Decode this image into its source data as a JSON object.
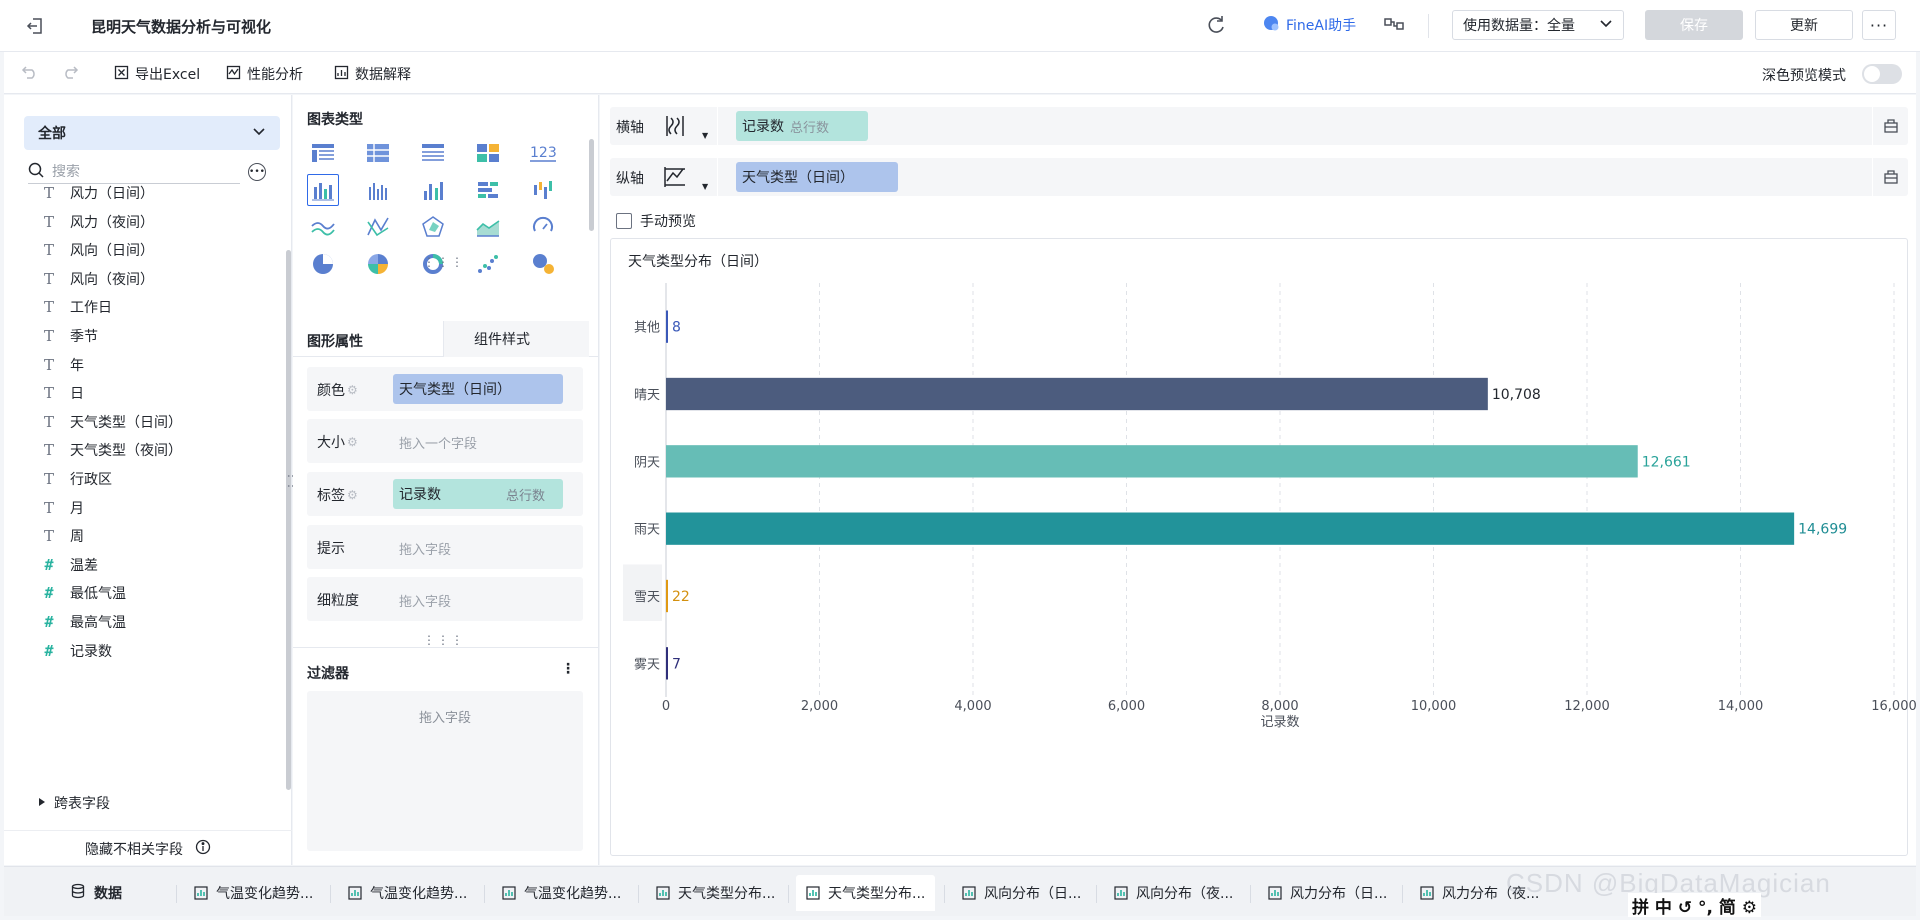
{
  "header": {
    "title": "昆明天气数据分析与可视化",
    "ai_label": "FineAI助手",
    "dataset_select": "使用数据量：全量",
    "save_label": "保存",
    "update_label": "更新",
    "more_label": "···"
  },
  "toolbar": {
    "export_label": "导出Excel",
    "perf_label": "性能分析",
    "explain_label": "数据解释",
    "dark_mode_label": "深色预览模式",
    "dark_mode_on": false
  },
  "field_panel": {
    "select_value": "全部",
    "search_placeholder": "搜索",
    "fields": [
      {
        "label": "风力（日间）",
        "type": "text"
      },
      {
        "label": "风力（夜间）",
        "type": "text"
      },
      {
        "label": "风向（日间）",
        "type": "text"
      },
      {
        "label": "风向（夜间）",
        "type": "text"
      },
      {
        "label": "工作日",
        "type": "text"
      },
      {
        "label": "季节",
        "type": "text"
      },
      {
        "label": "年",
        "type": "text"
      },
      {
        "label": "日",
        "type": "text"
      },
      {
        "label": "天气类型（日间）",
        "type": "text"
      },
      {
        "label": "天气类型（夜间）",
        "type": "text"
      },
      {
        "label": "行政区",
        "type": "text"
      },
      {
        "label": "月",
        "type": "text"
      },
      {
        "label": "周",
        "type": "text"
      },
      {
        "label": "温差",
        "type": "number"
      },
      {
        "label": "最低气温",
        "type": "number"
      },
      {
        "label": "最高气温",
        "type": "number"
      },
      {
        "label": "记录数",
        "type": "number"
      }
    ],
    "cross_table_label": "跨表字段",
    "hide_unrelated_label": "隐藏不相关字段"
  },
  "config_panel": {
    "chart_type_title": "图表类型",
    "tab_shape": "图形属性",
    "tab_style": "组件样式",
    "props": {
      "color_label": "颜色",
      "color_value": "天气类型（日间）",
      "size_label": "大小",
      "size_placeholder": "拖入一个字段",
      "label_label": "标签",
      "label_value": "记录数",
      "label_sub": "总行数",
      "tooltip_label": "提示",
      "tooltip_placeholder": "拖入字段",
      "granularity_label": "细粒度",
      "granularity_placeholder": "拖入字段"
    },
    "filter_title": "过滤器",
    "filter_more": "⋮",
    "filter_placeholder": "拖入字段"
  },
  "axes": {
    "x_label": "横轴",
    "x_field": "记录数",
    "x_field_sub": "总行数",
    "y_label": "纵轴",
    "y_field": "天气类型（日间）",
    "manual_preview_label": "手动预览"
  },
  "chart_data": {
    "type": "bar",
    "orientation": "horizontal",
    "title": "天气类型分布（日间）",
    "xlabel": "记录数",
    "ylabel": "",
    "categories": [
      "其他",
      "晴天",
      "阴天",
      "雨天",
      "雪天",
      "雾天"
    ],
    "values": [
      8,
      10708,
      12661,
      14699,
      22,
      7
    ],
    "value_labels": [
      "8",
      "10,708",
      "12,661",
      "14,699",
      "22",
      "7"
    ],
    "colors": [
      "#3a58b8",
      "#4c5c7e",
      "#66bdb6",
      "#22939a",
      "#e09a14",
      "#2f2f7a"
    ],
    "label_colors": [
      "#3a58b8",
      "#23272e",
      "#2aa39a",
      "#1f8d94",
      "#d3900f",
      "#2f2f7a"
    ],
    "xlim": [
      0,
      16000
    ],
    "xticks": [
      0,
      2000,
      4000,
      6000,
      8000,
      10000,
      12000,
      14000,
      16000
    ],
    "xtick_labels": [
      "0",
      "2,000",
      "4,000",
      "6,000",
      "8,000",
      "10,000",
      "12,000",
      "14,000",
      "16,000"
    ],
    "grid": "vertical-dashed",
    "highlighted_category": "雪天"
  },
  "bottom_tabs": {
    "data_label": "数据",
    "tabs": [
      "气温变化趋势...",
      "气温变化趋势...",
      "气温变化趋势...",
      "天气类型分布...",
      "天气类型分布...",
      "风向分布（日...",
      "风向分布（夜...",
      "风力分布（日...",
      "风力分布（夜..."
    ],
    "active_index": 4
  },
  "watermark": "CSDN @BigDataMagician",
  "ime": {
    "label": "拼 中 ↺ °, 简 ⚙"
  }
}
